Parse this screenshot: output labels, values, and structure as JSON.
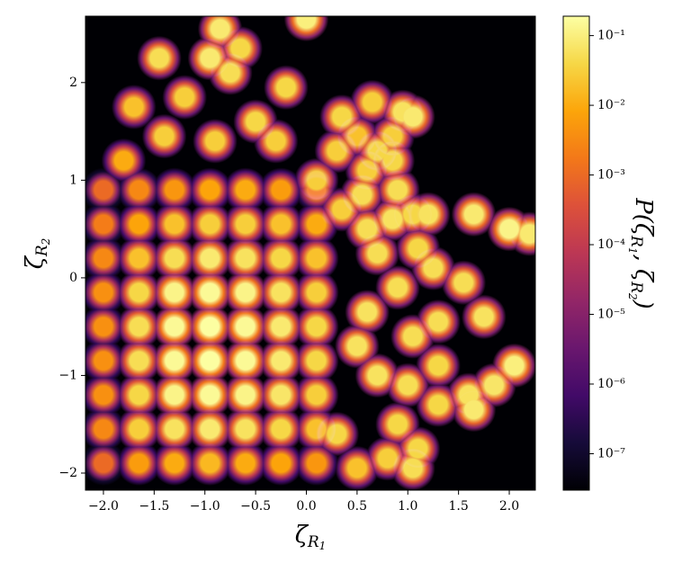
{
  "chart_data": {
    "type": "density",
    "xlabel": [
      "ζ",
      "R",
      "1"
    ],
    "ylabel": [
      "ζ",
      "R",
      "2"
    ],
    "colorbar_label": [
      "P(",
      "ζ",
      "R",
      "1",
      ", ",
      "ζ",
      "R",
      "2",
      ")"
    ],
    "colormap": "inferno",
    "color_scale": "log",
    "clim": [
      3e-08,
      0.19
    ],
    "cticks": [
      {
        "value": 1e-07,
        "label": "10⁻⁷"
      },
      {
        "value": 1e-06,
        "label": "10⁻⁶"
      },
      {
        "value": 1e-05,
        "label": "10⁻⁵"
      },
      {
        "value": 0.0001,
        "label": "10⁻⁴"
      },
      {
        "value": 0.001,
        "label": "10⁻³"
      },
      {
        "value": 0.01,
        "label": "10⁻²"
      },
      {
        "value": 0.1,
        "label": "10⁻¹"
      }
    ],
    "xlim": [
      -2.177,
      2.257
    ],
    "ylim": [
      -2.175,
      2.68
    ],
    "xticks": [
      {
        "value": -2,
        "label": "−2.0"
      },
      {
        "value": -1.5,
        "label": "−1.5"
      },
      {
        "value": -1,
        "label": "−1.0"
      },
      {
        "value": -0.5,
        "label": "−0.5"
      },
      {
        "value": 0,
        "label": "0.0"
      },
      {
        "value": 0.5,
        "label": "0.5"
      },
      {
        "value": 1,
        "label": "1.0"
      },
      {
        "value": 1.5,
        "label": "1.5"
      },
      {
        "value": 2,
        "label": "2.0"
      }
    ],
    "yticks": [
      {
        "value": -2,
        "label": "−2"
      },
      {
        "value": -1,
        "label": "−1"
      },
      0,
      1,
      2
    ],
    "x": [
      -2.0,
      -1.65,
      -1.3,
      -0.95,
      -0.6,
      -0.25,
      0.1,
      -2.0,
      -1.65,
      -1.3,
      -0.95,
      -0.6,
      -0.25,
      0.1,
      -2.0,
      -1.65,
      -1.3,
      -0.95,
      -0.6,
      -0.25,
      0.1,
      -2.0,
      -1.65,
      -1.3,
      -0.95,
      -0.6,
      -0.25,
      0.1,
      -2.0,
      -1.65,
      -1.3,
      -0.95,
      -0.6,
      -0.25,
      0.1,
      -2.0,
      -1.65,
      -1.3,
      -0.95,
      -0.6,
      -0.25,
      0.1,
      -2.0,
      -1.65,
      -1.3,
      -0.95,
      -0.6,
      -0.25,
      0.1,
      -2.0,
      -1.65,
      -1.3,
      -0.95,
      -0.6,
      -0.25,
      0.1,
      -2.0,
      -1.65,
      -1.3,
      -0.95,
      -0.6,
      -0.25,
      0.1,
      -0.85,
      0.0,
      -0.65,
      -1.45,
      -0.95,
      -0.75,
      -0.2,
      -1.7,
      -1.2,
      0.35,
      0.65,
      0.95,
      1.05,
      0.5,
      0.85,
      0.3,
      0.7,
      0.6,
      0.85,
      0.9,
      0.55,
      0.35,
      1.05,
      1.2,
      0.85,
      1.65,
      2.0,
      2.2,
      0.6,
      1.1,
      1.25,
      0.7,
      1.55,
      0.9,
      1.75,
      1.3,
      0.6,
      1.05,
      1.3,
      2.05,
      1.85,
      1.6,
      1.65,
      1.3,
      1.0,
      0.7,
      0.5,
      0.9,
      1.1,
      0.8,
      0.5,
      1.05,
      0.3,
      -0.3,
      0.1,
      -0.5,
      -0.9,
      -1.4,
      -1.8
    ],
    "y": [
      0.9,
      0.9,
      0.9,
      0.9,
      0.9,
      0.9,
      0.9,
      0.55,
      0.55,
      0.55,
      0.55,
      0.55,
      0.55,
      0.55,
      0.2,
      0.2,
      0.2,
      0.2,
      0.2,
      0.2,
      0.2,
      -0.15,
      -0.15,
      -0.15,
      -0.15,
      -0.15,
      -0.15,
      -0.15,
      -0.5,
      -0.5,
      -0.5,
      -0.5,
      -0.5,
      -0.5,
      -0.5,
      -0.85,
      -0.85,
      -0.85,
      -0.85,
      -0.85,
      -0.85,
      -0.85,
      -1.2,
      -1.2,
      -1.2,
      -1.2,
      -1.2,
      -1.2,
      -1.2,
      -1.55,
      -1.55,
      -1.55,
      -1.55,
      -1.55,
      -1.55,
      -1.55,
      -1.9,
      -1.9,
      -1.9,
      -1.9,
      -1.9,
      -1.9,
      -1.9,
      2.55,
      2.65,
      2.35,
      2.25,
      2.25,
      2.1,
      1.95,
      1.75,
      1.85,
      1.65,
      1.8,
      1.7,
      1.65,
      1.45,
      1.45,
      1.3,
      1.3,
      1.1,
      1.2,
      0.9,
      0.85,
      0.7,
      0.65,
      0.65,
      0.6,
      0.65,
      0.5,
      0.45,
      0.5,
      0.3,
      0.1,
      0.25,
      -0.05,
      -0.1,
      -0.4,
      -0.45,
      -0.35,
      -0.6,
      -0.9,
      -0.9,
      -1.1,
      -1.2,
      -1.35,
      -1.3,
      -1.1,
      -1.0,
      -0.7,
      -1.5,
      -1.75,
      -1.85,
      -1.95,
      -1.95,
      -1.6,
      1.4,
      1.0,
      1.6,
      1.4,
      1.45,
      1.2
    ],
    "values": [
      0.001,
      0.003,
      0.005,
      0.008,
      0.01,
      0.006,
      0.003,
      0.002,
      0.008,
      0.02,
      0.03,
      0.03,
      0.02,
      0.01,
      0.003,
      0.02,
      0.05,
      0.08,
      0.06,
      0.04,
      0.02,
      0.004,
      0.04,
      0.12,
      0.15,
      0.12,
      0.06,
      0.03,
      0.004,
      0.05,
      0.15,
      0.18,
      0.15,
      0.08,
      0.04,
      0.004,
      0.05,
      0.15,
      0.18,
      0.15,
      0.08,
      0.04,
      0.004,
      0.04,
      0.12,
      0.15,
      0.12,
      0.07,
      0.03,
      0.003,
      0.03,
      0.06,
      0.08,
      0.06,
      0.04,
      0.02,
      0.001,
      0.006,
      0.01,
      0.015,
      0.01,
      0.008,
      0.005,
      0.08,
      0.1,
      0.04,
      0.05,
      0.08,
      0.05,
      0.04,
      0.02,
      0.03,
      0.04,
      0.03,
      0.06,
      0.08,
      0.02,
      0.03,
      0.03,
      0.04,
      0.03,
      0.04,
      0.05,
      0.05,
      0.03,
      0.04,
      0.06,
      0.06,
      0.08,
      0.12,
      0.08,
      0.05,
      0.04,
      0.05,
      0.05,
      0.05,
      0.05,
      0.06,
      0.05,
      0.06,
      0.05,
      0.04,
      0.1,
      0.07,
      0.06,
      0.08,
      0.04,
      0.05,
      0.06,
      0.06,
      0.04,
      0.04,
      0.03,
      0.02,
      0.05,
      0.04,
      0.03,
      0.03,
      0.04,
      0.03,
      0.03,
      0.01
    ]
  }
}
